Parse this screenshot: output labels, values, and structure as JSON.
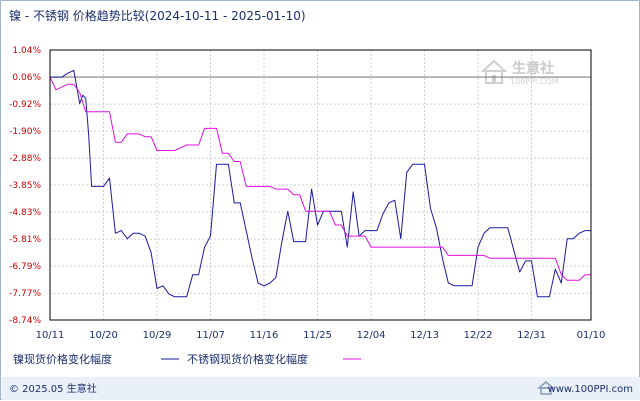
{
  "title": "镍 - 不锈钢 价格趋势比较(2024-10-11 - 2025-01-10)",
  "watermark": {
    "name": "生意社",
    "url": "100PPI.COM"
  },
  "footer": {
    "left": "© 2025.05 生意社",
    "right": "www.100PPI.com"
  },
  "colors": {
    "nickel": "#1a1aa0",
    "stainless": "#e010e0",
    "baseline": "#808080",
    "grid": "#cfcfcf",
    "ytick": "#cc0000",
    "axis": "#1a2e6e",
    "bottom_band": "#eaf0f7"
  },
  "chart_data": {
    "type": "line",
    "title": "镍 - 不锈钢 价格趋势比较(2024-10-11 - 2025-01-10)",
    "xlabel": "",
    "ylabel": "",
    "y_unit": "%",
    "ylim": [
      -8.74,
      1.04
    ],
    "yticks": [
      "1.04%",
      "0.06%",
      "-0.92%",
      "-1.90%",
      "-2.88%",
      "-3.85%",
      "-4.83%",
      "-5.81%",
      "-6.79%",
      "-7.77%",
      "-8.74%"
    ],
    "ytick_values": [
      1.04,
      0.06,
      -0.92,
      -1.9,
      -2.88,
      -3.85,
      -4.83,
      -5.81,
      -6.79,
      -7.77,
      -8.74
    ],
    "xlim": [
      0,
      91
    ],
    "xticks": [
      "10/11",
      "10/20",
      "10/29",
      "11/07",
      "11/16",
      "11/25",
      "12/04",
      "12/13",
      "12/22",
      "12/31",
      "01/10"
    ],
    "xtick_positions": [
      0,
      9,
      18,
      27,
      36,
      45,
      54,
      63,
      72,
      81,
      91
    ],
    "grid": true,
    "legend_position": "bottom",
    "series": [
      {
        "name": "镍现货价格变化幅度",
        "color": "#1a1aa0",
        "x": [
          0,
          2,
          3,
          4,
          5,
          5.5,
          6,
          6.5,
          7,
          8,
          9,
          10,
          11,
          12,
          13,
          14,
          15,
          16,
          17,
          18,
          19,
          20,
          21,
          22,
          23,
          24,
          25,
          26,
          27,
          28,
          29,
          30,
          31,
          32,
          33,
          34,
          35,
          36,
          37,
          38,
          39,
          40,
          41,
          42,
          43,
          44,
          45,
          46,
          47,
          48,
          49,
          50,
          51,
          52,
          53,
          54,
          55,
          56,
          57,
          58,
          59,
          60,
          61,
          62,
          63,
          64,
          65,
          66,
          67,
          68,
          69,
          70,
          71,
          72,
          73,
          74,
          75,
          76,
          77,
          78,
          79,
          80,
          81,
          82,
          83,
          84,
          85,
          86,
          87,
          88,
          89,
          90,
          91
        ],
        "y": [
          0.06,
          0.06,
          0.2,
          0.3,
          -0.9,
          -0.6,
          -0.7,
          -2.0,
          -3.9,
          -3.9,
          -3.9,
          -3.6,
          -5.6,
          -5.5,
          -5.8,
          -5.6,
          -5.6,
          -5.7,
          -6.3,
          -7.6,
          -7.5,
          -7.8,
          -7.9,
          -7.9,
          -7.9,
          -7.1,
          -7.1,
          -6.1,
          -5.7,
          -3.1,
          -3.1,
          -3.1,
          -4.5,
          -4.5,
          -5.5,
          -6.5,
          -7.4,
          -7.5,
          -7.4,
          -7.2,
          -5.9,
          -4.8,
          -5.9,
          -5.9,
          -5.9,
          -4.0,
          -5.3,
          -4.8,
          -4.8,
          -4.8,
          -4.8,
          -6.1,
          -4.1,
          -5.7,
          -5.5,
          -5.5,
          -5.5,
          -4.9,
          -4.5,
          -4.4,
          -5.8,
          -3.4,
          -3.1,
          -3.1,
          -3.1,
          -4.7,
          -5.4,
          -6.5,
          -7.4,
          -7.5,
          -7.5,
          -7.5,
          -7.5,
          -6.1,
          -5.6,
          -5.4,
          -5.4,
          -5.4,
          -5.4,
          -6.2,
          -7.0,
          -6.6,
          -6.6,
          -7.9,
          -7.9,
          -7.9,
          -6.9,
          -7.4,
          -5.8,
          -5.8,
          -5.6,
          -5.5,
          -5.5
        ]
      },
      {
        "name": "不锈钢现货价格变化幅度",
        "color": "#e010e0",
        "x": [
          0,
          1,
          3,
          4,
          5,
          6,
          7,
          8,
          9,
          10,
          11,
          12,
          13,
          14,
          15,
          16,
          17,
          18,
          19,
          20,
          21,
          22,
          23,
          24,
          25,
          26,
          27,
          28,
          29,
          30,
          31,
          32,
          33,
          34,
          35,
          36,
          37,
          38,
          39,
          40,
          41,
          42,
          43,
          44,
          45,
          46,
          47,
          48,
          49,
          50,
          51,
          52,
          53,
          54,
          55,
          56,
          57,
          58,
          59,
          60,
          61,
          62,
          63,
          64,
          65,
          66,
          67,
          68,
          69,
          70,
          71,
          72,
          73,
          74,
          75,
          76,
          77,
          78,
          79,
          80,
          81,
          82,
          83,
          84,
          85,
          86,
          87,
          88,
          89,
          90,
          91
        ],
        "y": [
          0.06,
          -0.4,
          -0.2,
          -0.2,
          -0.5,
          -1.2,
          -1.2,
          -1.2,
          -1.2,
          -1.2,
          -2.3,
          -2.3,
          -2.0,
          -2.0,
          -2.0,
          -2.1,
          -2.1,
          -2.6,
          -2.6,
          -2.6,
          -2.6,
          -2.5,
          -2.4,
          -2.4,
          -2.4,
          -1.8,
          -1.8,
          -1.8,
          -2.7,
          -2.7,
          -3.0,
          -3.0,
          -3.9,
          -3.9,
          -3.9,
          -3.9,
          -3.9,
          -4.0,
          -4.0,
          -4.0,
          -4.2,
          -4.2,
          -4.8,
          -4.8,
          -4.8,
          -4.8,
          -4.8,
          -5.3,
          -5.3,
          -5.7,
          -5.7,
          -5.7,
          -5.7,
          -6.1,
          -6.1,
          -6.1,
          -6.1,
          -6.1,
          -6.1,
          -6.1,
          -6.1,
          -6.1,
          -6.1,
          -6.1,
          -6.1,
          -6.1,
          -6.4,
          -6.4,
          -6.4,
          -6.4,
          -6.4,
          -6.4,
          -6.4,
          -6.5,
          -6.5,
          -6.5,
          -6.5,
          -6.5,
          -6.5,
          -6.5,
          -6.5,
          -6.5,
          -6.5,
          -6.5,
          -6.5,
          -7.1,
          -7.3,
          -7.3,
          -7.3,
          -7.1,
          -7.1
        ]
      }
    ]
  }
}
